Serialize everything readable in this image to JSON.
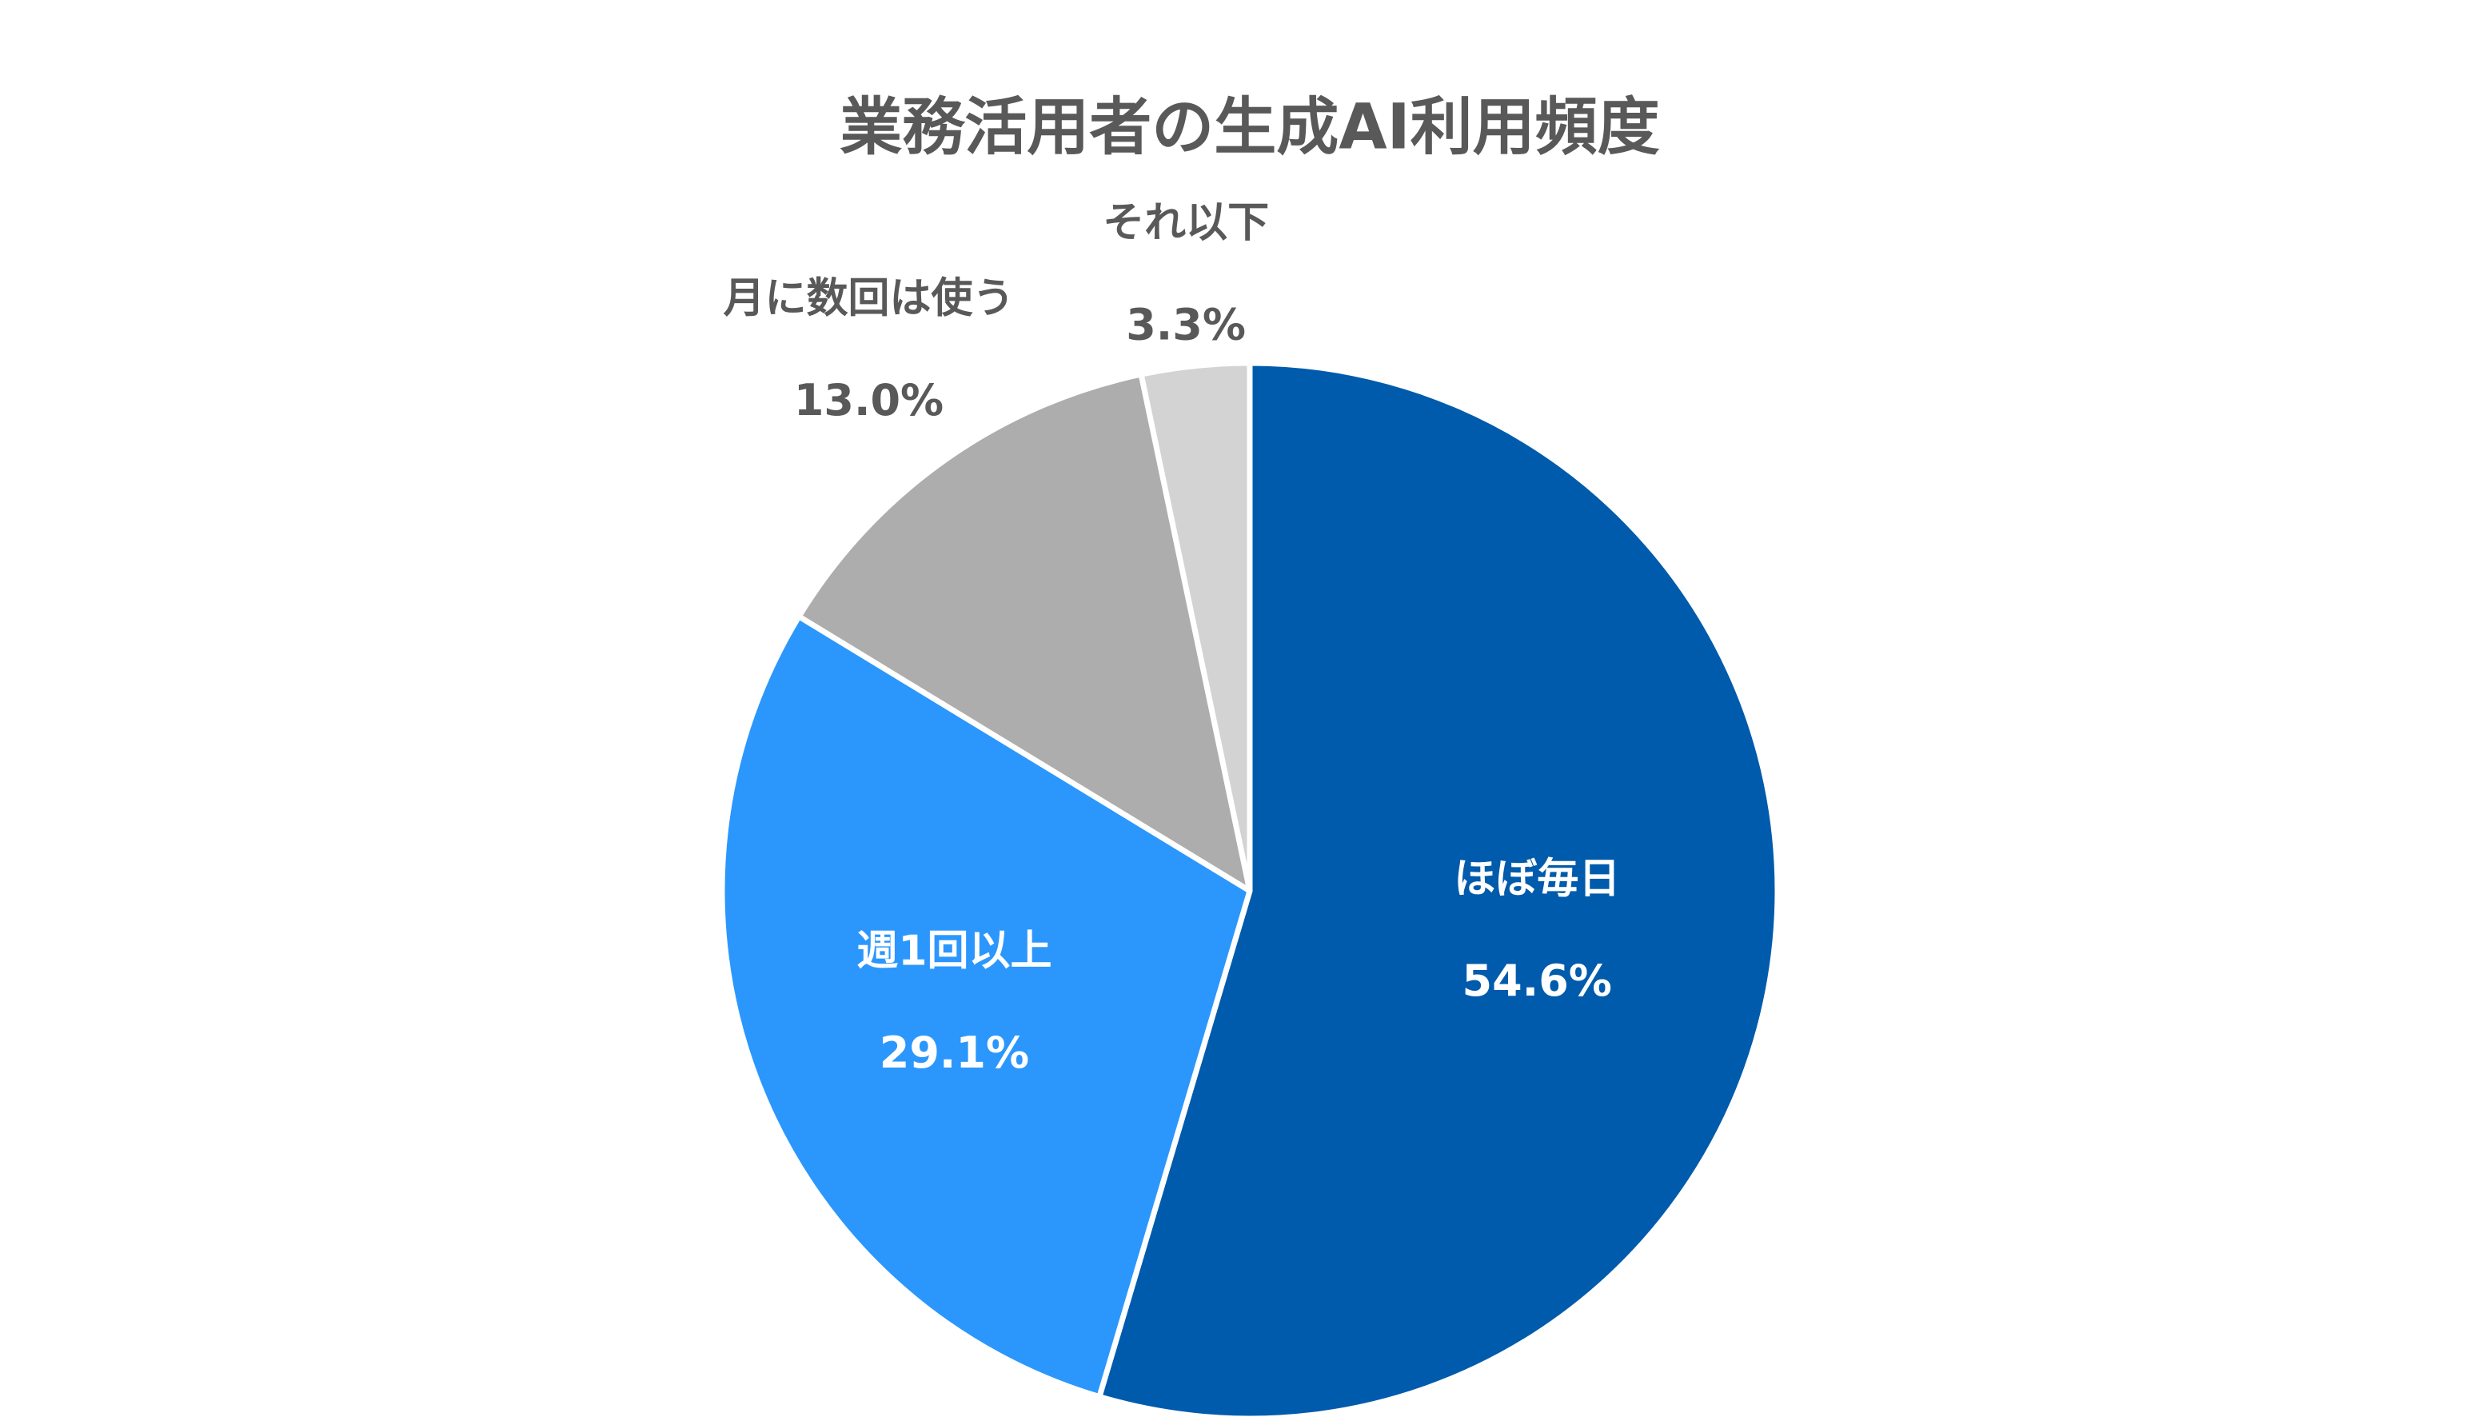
{
  "chart_data": {
    "type": "pie",
    "title": "業務活用者の生成AI利用頻度",
    "categories": [
      "ほぼ毎日",
      "週1回以上",
      "月に数回は使う",
      "それ以下"
    ],
    "values": [
      54.6,
      29.1,
      13.0,
      3.3
    ],
    "value_labels": [
      "54.6%",
      "29.1%",
      "13.0%",
      "3.3%"
    ],
    "colors": [
      "#005bac",
      "#2b97fd",
      "#adadad",
      "#d3d3d3"
    ]
  }
}
